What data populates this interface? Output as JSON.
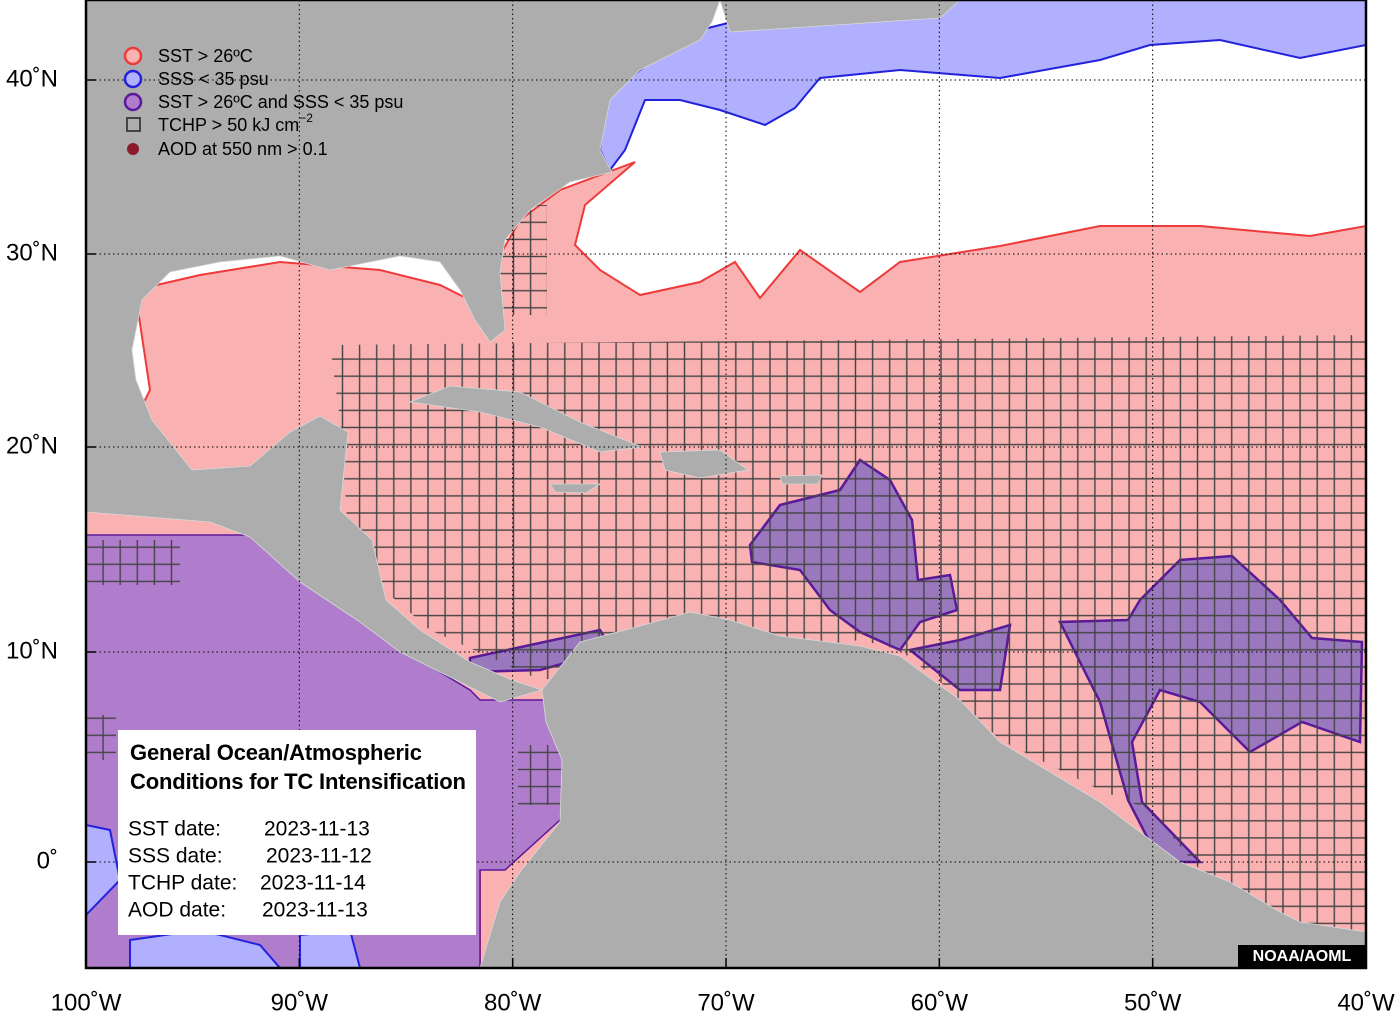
{
  "legend": [
    {
      "label": "SST > 26ºC"
    },
    {
      "label": "SSS < 35 psu"
    },
    {
      "label": "SST > 26ºC and SSS < 35 psu"
    },
    {
      "label": "TCHP > 50 kJ cm",
      "superscript": "−2"
    },
    {
      "label": "AOD at 550 nm > 0.1"
    }
  ],
  "info_box": {
    "title": [
      "General Ocean/Atmospheric",
      "Conditions for TC Intensification"
    ],
    "dates": [
      {
        "label": "SST date:",
        "value": "2023-11-13"
      },
      {
        "label": "SSS date:",
        "value": "2023-11-12"
      },
      {
        "label": "TCHP date:",
        "value": "2023-11-14"
      },
      {
        "label": "AOD date:",
        "value": "2023-11-13"
      }
    ]
  },
  "axes": {
    "longitude_labels": [
      "100˚W",
      "90˚W",
      "80˚W",
      "70˚W",
      "60˚W",
      "50˚W",
      "40˚W"
    ],
    "latitude_labels": [
      "40˚N",
      "30˚N",
      "20˚N",
      "10˚N",
      "0˚"
    ]
  },
  "credit": "NOAA/AOML"
}
